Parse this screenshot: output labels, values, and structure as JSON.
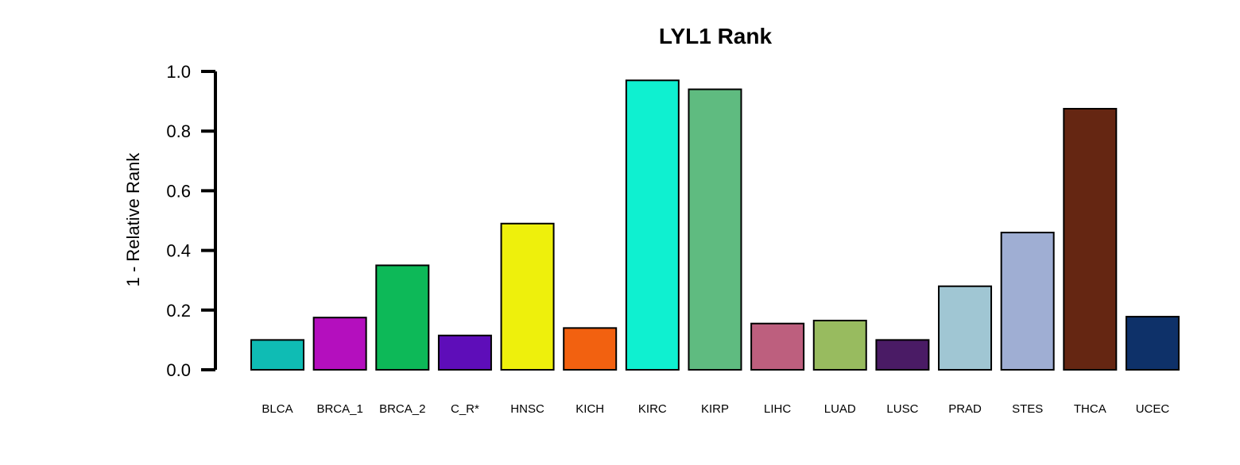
{
  "chart_data": {
    "type": "bar",
    "title": "LYL1 Rank",
    "xlabel": "",
    "ylabel": "1 - Relative Rank",
    "ylim": [
      0,
      1.0
    ],
    "yticks": [
      "0.0",
      "0.2",
      "0.4",
      "0.6",
      "0.8",
      "1.0"
    ],
    "grid": false,
    "legend": "none",
    "categories": [
      "BLCA",
      "BRCA_1",
      "BRCA_2",
      "C_R*",
      "HNSC",
      "KICH",
      "KIRC",
      "KIRP",
      "LIHC",
      "LUAD",
      "LUSC",
      "PRAD",
      "STES",
      "THCA",
      "UCEC"
    ],
    "values": [
      0.1,
      0.175,
      0.35,
      0.115,
      0.49,
      0.14,
      0.97,
      0.94,
      0.155,
      0.165,
      0.1,
      0.28,
      0.46,
      0.875,
      0.178
    ],
    "colors": [
      "#0fbcb4",
      "#b40fbe",
      "#0db958",
      "#5e0db9",
      "#eef00c",
      "#f26110",
      "#0ff0d0",
      "#5fbb80",
      "#bd5f7e",
      "#98bb5f",
      "#4a1b65",
      "#a0c6d3",
      "#9faed3",
      "#652612",
      "#0e3169"
    ]
  }
}
